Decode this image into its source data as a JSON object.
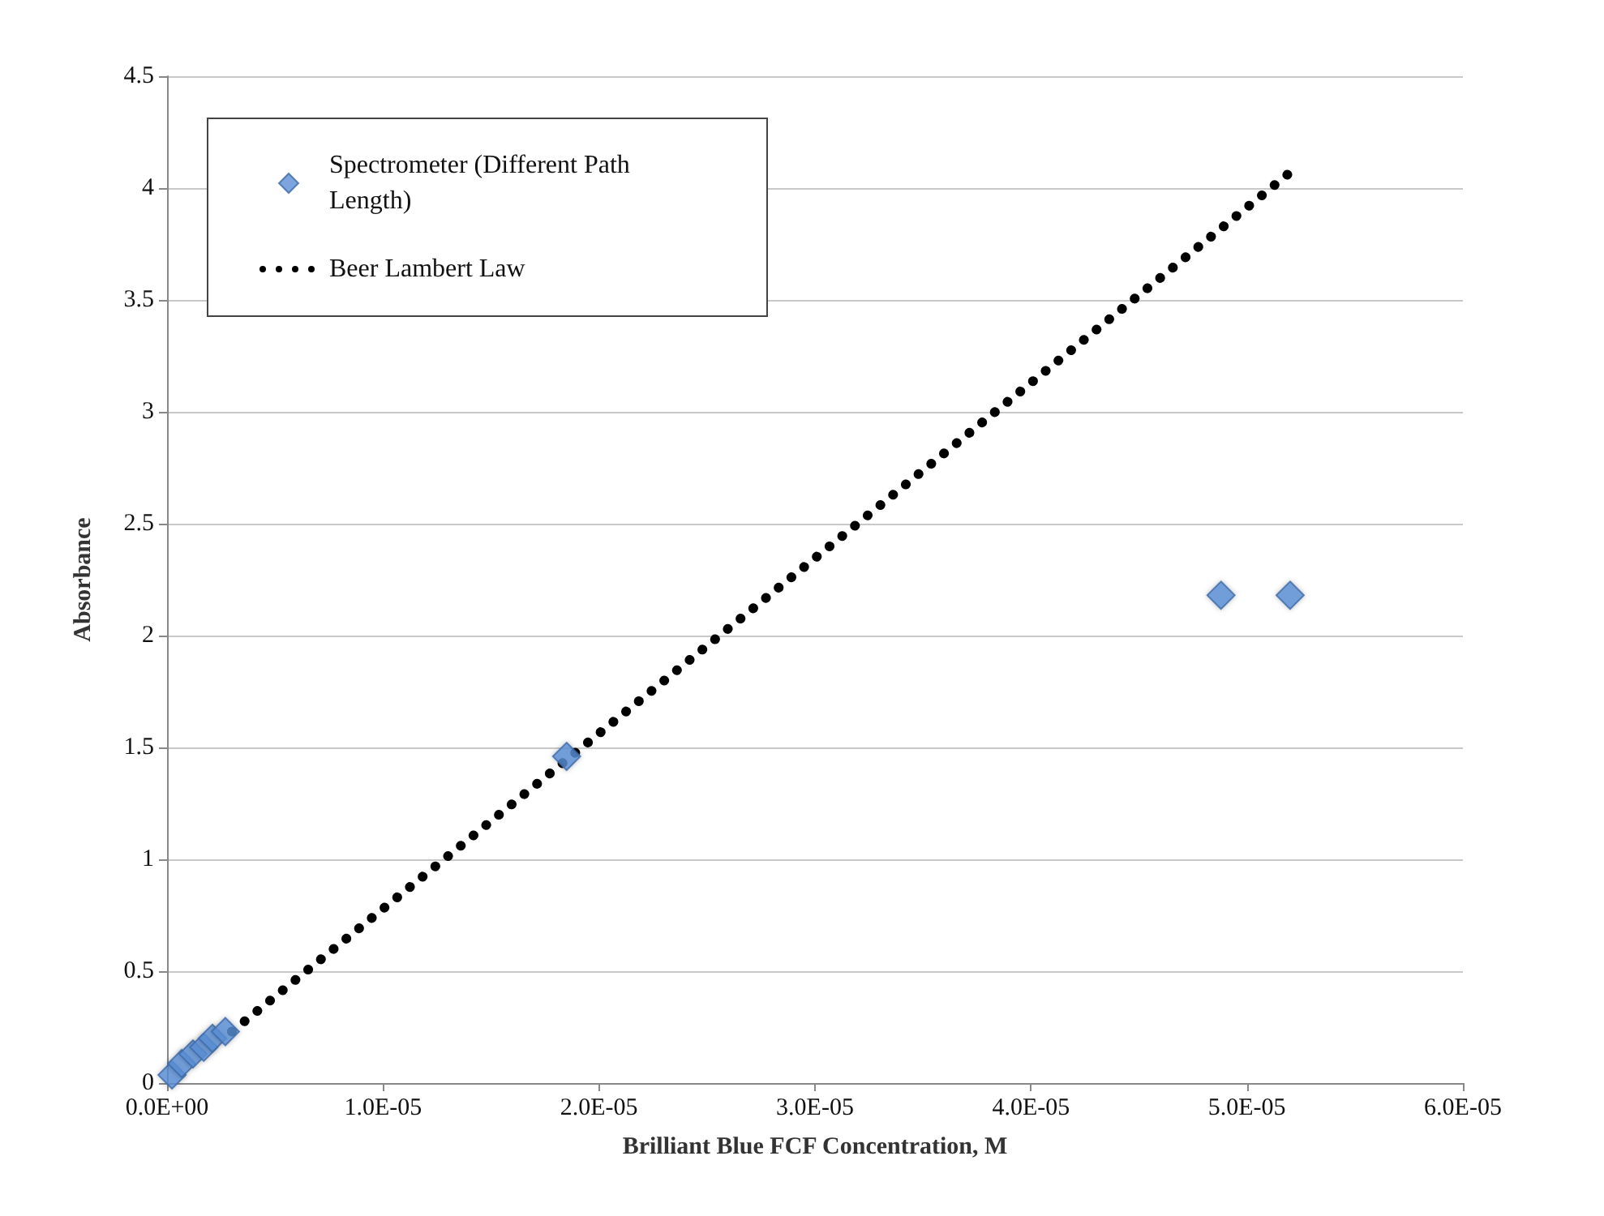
{
  "chart_data": {
    "type": "scatter",
    "xlabel": "Brilliant Blue FCF Concentration, M",
    "ylabel": "Absorbance",
    "series": [
      {
        "name": "Spectrometer (Different Path Length)",
        "color": "#5b8ed6",
        "marker": "diamond",
        "x": [
          2.3e-07,
          6.8e-07,
          1.2e-06,
          1.7e-06,
          2.1e-06,
          2.7e-06,
          1.85e-05,
          4.88e-05,
          5.2e-05
        ],
        "values": [
          0.036,
          0.087,
          0.13,
          0.16,
          0.2,
          0.23,
          1.46,
          2.18,
          2.18
        ]
      },
      {
        "name": "Beer Lambert Law",
        "type": "line",
        "color": "#000000",
        "marker": "none",
        "line_style": "dotted",
        "x": [
          3e-06,
          5.2e-05
        ],
        "values": [
          0.23,
          4.07
        ]
      }
    ],
    "xlim": [
      0,
      6e-05
    ],
    "xticks": [
      {
        "value": 0,
        "label": "0.0E+00"
      },
      {
        "value": 1e-05,
        "label": "1.0E-05"
      },
      {
        "value": 2e-05,
        "label": "2.0E-05"
      },
      {
        "value": 3e-05,
        "label": "3.0E-05"
      },
      {
        "value": 4e-05,
        "label": "4.0E-05"
      },
      {
        "value": 5e-05,
        "label": "5.0E-05"
      },
      {
        "value": 6e-05,
        "label": "6.0E-05"
      }
    ],
    "ylim": [
      0,
      4.5
    ],
    "yticks": [
      0,
      0.5,
      1,
      1.5,
      2,
      2.5,
      3,
      3.5,
      4,
      4.5
    ],
    "grid": "y",
    "legend": "top left"
  }
}
